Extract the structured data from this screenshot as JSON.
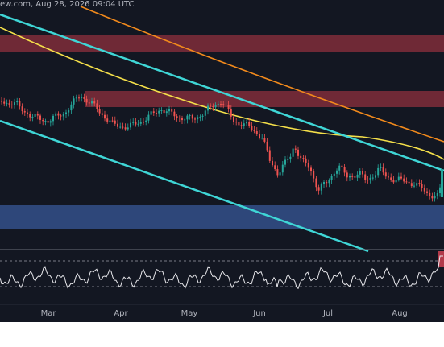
{
  "header": {
    "text": "ew.com, Aug 28, 2026 09:04 UTC"
  },
  "x_axis": {
    "labels": [
      "Mar",
      "Apr",
      "May",
      "Jun",
      "Jul",
      "Aug"
    ]
  }
}
